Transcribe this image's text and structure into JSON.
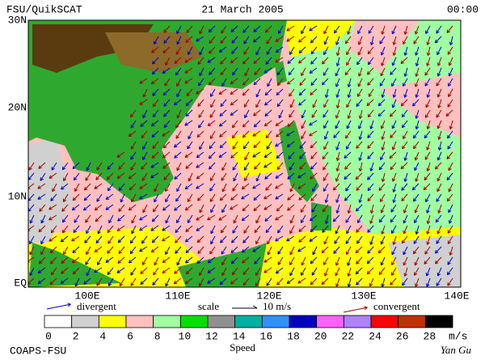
{
  "header": {
    "title": "FSU/QuikSCAT",
    "date": "21 March 2005",
    "time": "00:00"
  },
  "map": {
    "lat_labels": [
      "30N",
      "20N",
      "10N",
      "EQ"
    ],
    "lon_labels": [
      "100E",
      "110E",
      "120E",
      "130E",
      "140E"
    ]
  },
  "legend": {
    "divergent": {
      "label": "divergent",
      "color": "#0000cc"
    },
    "scale": {
      "label": "scale",
      "value": "10 m/s"
    },
    "convergent": {
      "label": "convergent",
      "color": "#a00000"
    }
  },
  "colorbar": {
    "ticks": [
      0,
      2,
      4,
      6,
      8,
      10,
      12,
      14,
      16,
      18,
      20,
      22,
      24,
      26,
      28
    ],
    "unit": "m/s",
    "title": "Speed",
    "colors": [
      "#ffffff",
      "#d0d0d0",
      "#ffff00",
      "#ffc0c0",
      "#a0ffa0",
      "#00e000",
      "#909090",
      "#00b0a0",
      "#3090ff",
      "#0000c0",
      "#ff60ff",
      "#b080ff",
      "#ff0000",
      "#c03000",
      "#000000"
    ]
  },
  "footer": {
    "left": "COAPS-FSU",
    "right": "Yan Gu"
  }
}
